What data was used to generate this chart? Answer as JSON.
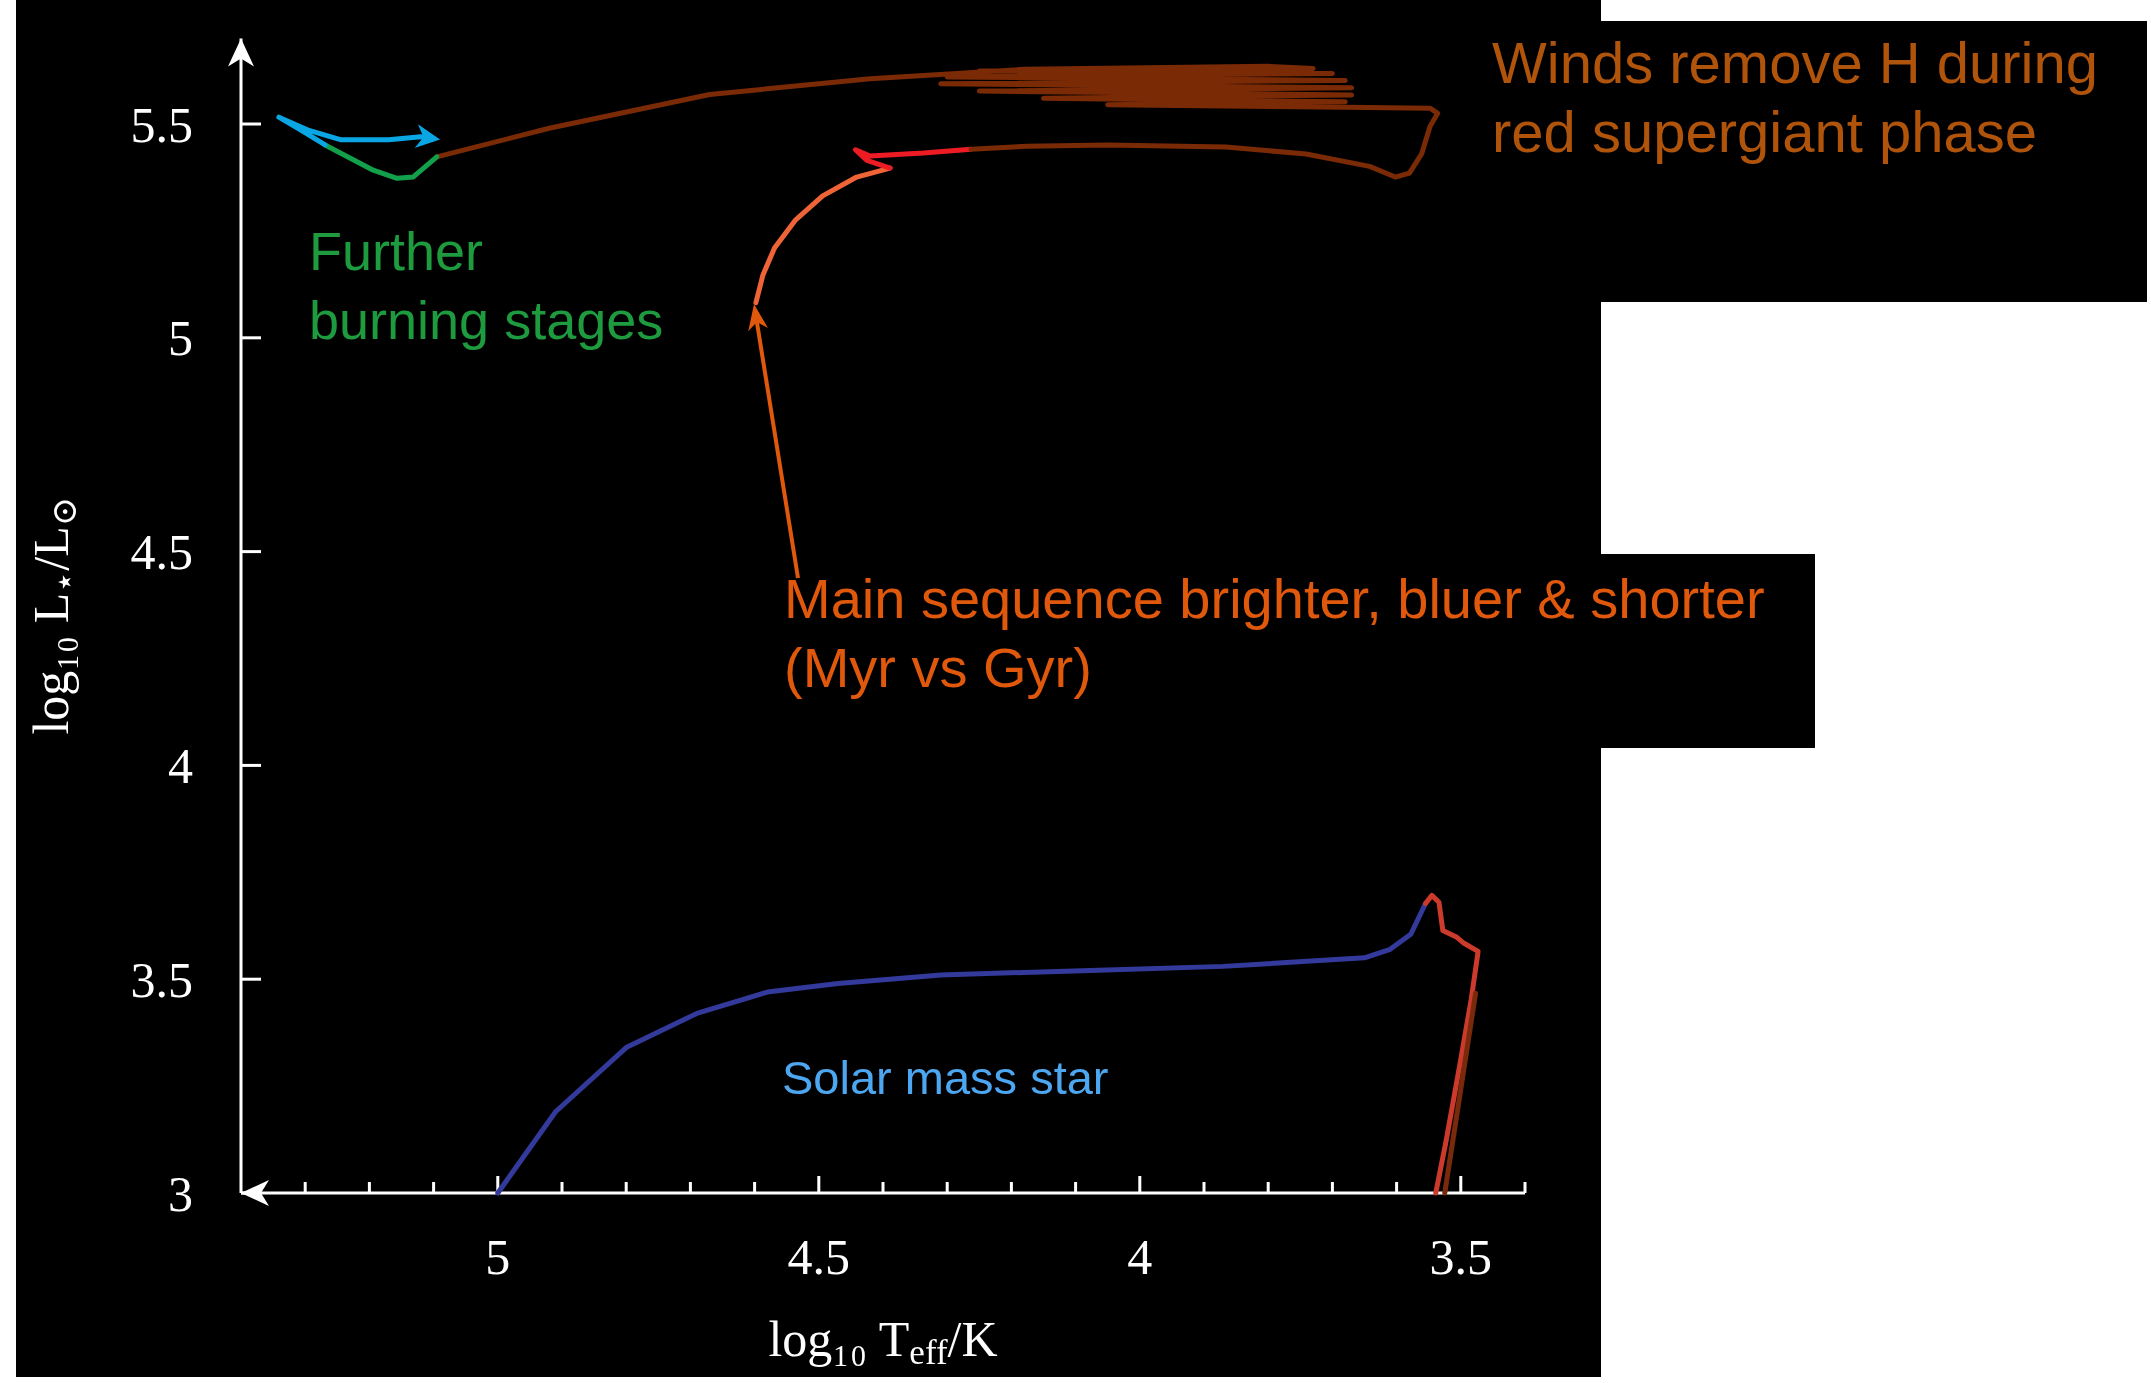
{
  "chart_data": {
    "type": "line",
    "xlabel": "log₁₀ T$_{eff}$/K",
    "ylabel": "log₁₀ L$_{⋆}$/L$_{⊙}$",
    "xlim": [
      5.4,
      3.4
    ],
    "ylim": [
      3,
      5.7
    ],
    "xticks": [
      {
        "value": 5.3,
        "label": null
      },
      {
        "value": 5.2,
        "label": null
      },
      {
        "value": 5.1,
        "label": null
      },
      5,
      {
        "value": 4.9,
        "label": null
      },
      {
        "value": 4.8,
        "label": null
      },
      {
        "value": 4.7,
        "label": null
      },
      {
        "value": 4.6,
        "label": null
      },
      4.5,
      {
        "value": 4.4,
        "label": null
      },
      {
        "value": 4.3,
        "label": null
      },
      {
        "value": 4.2,
        "label": null
      },
      {
        "value": 4.1,
        "label": null
      },
      4,
      {
        "value": 3.9,
        "label": null
      },
      {
        "value": 3.8,
        "label": null
      },
      {
        "value": 3.7,
        "label": null
      },
      {
        "value": 3.6,
        "label": null
      },
      3.5,
      {
        "value": 3.4,
        "label": null
      }
    ],
    "yticks": [
      3,
      3.5,
      4,
      4.5,
      5,
      5.5
    ],
    "series": [
      {
        "color": "#343a9c",
        "x": [
          5.0,
          4.91,
          4.8,
          4.69,
          4.58,
          4.47,
          4.31,
          4.09,
          3.87,
          3.65,
          3.61,
          3.578,
          3.555
        ],
        "values": [
          3.0,
          3.19,
          3.34,
          3.42,
          3.47,
          3.49,
          3.51,
          3.52,
          3.53,
          3.55,
          3.57,
          3.605,
          3.677
        ]
      },
      {
        "color": "#cc3a2c",
        "x": [
          3.555,
          3.545,
          3.534,
          3.528,
          3.506,
          3.495,
          3.473,
          3.484,
          3.501,
          3.523,
          3.539
        ],
        "values": [
          3.677,
          3.696,
          3.68,
          3.614,
          3.598,
          3.584,
          3.565,
          3.451,
          3.304,
          3.121,
          3.0
        ]
      },
      {
        "color": "#7a2a0c",
        "x": [
          3.525,
          3.477
        ],
        "values": [
          3.0,
          3.467
        ]
      },
      {
        "color": "#ef6436",
        "x": [
          4.598,
          4.587,
          4.569,
          4.536,
          4.494,
          4.441,
          4.389
        ],
        "values": [
          5.082,
          5.147,
          5.21,
          5.276,
          5.332,
          5.376,
          5.397
        ]
      },
      {
        "color": "#ed1c24",
        "x": [
          4.389,
          4.425,
          4.443,
          4.42,
          4.337,
          4.263
        ],
        "values": [
          5.397,
          5.415,
          5.44,
          5.425,
          5.432,
          5.441
        ]
      },
      {
        "color": "#7b2a06",
        "x": [
          4.263,
          4.176,
          4.051,
          3.866,
          3.741,
          3.642,
          3.602,
          3.58,
          3.561,
          3.548,
          3.536,
          3.548,
          3.68,
          4.05,
          3.68,
          4.15,
          3.67,
          4.25,
          3.67,
          4.31,
          3.68,
          4.3,
          3.7,
          4.25,
          3.73,
          3.8,
          4.18,
          4.42,
          4.67,
          4.92,
          5.095
        ],
        "values": [
          5.441,
          5.448,
          5.451,
          5.446,
          5.43,
          5.401,
          5.376,
          5.385,
          5.43,
          5.494,
          5.525,
          5.537,
          5.539,
          5.545,
          5.552,
          5.56,
          5.568,
          5.577,
          5.585,
          5.594,
          5.602,
          5.61,
          5.618,
          5.624,
          5.63,
          5.635,
          5.628,
          5.606,
          5.569,
          5.49,
          5.423
        ]
      },
      {
        "color": "#13a04b",
        "x": [
          5.095,
          5.132,
          5.157,
          5.194,
          5.269
        ],
        "values": [
          5.423,
          5.376,
          5.373,
          5.392,
          5.451
        ]
      },
      {
        "color": "#0aa6e4",
        "x": [
          5.269,
          5.306,
          5.341,
          5.294,
          5.244,
          5.17,
          5.12,
          5.101
        ],
        "values": [
          5.451,
          5.485,
          5.516,
          5.485,
          5.463,
          5.463,
          5.47,
          5.466
        ]
      }
    ],
    "annotations": [
      "Further\nburning stages",
      "Winds remove H during\nred supergiant phase",
      "Main sequence brighter, bluer & shorter\n(Myr vs Gyr)",
      "Solar mass star"
    ]
  }
}
